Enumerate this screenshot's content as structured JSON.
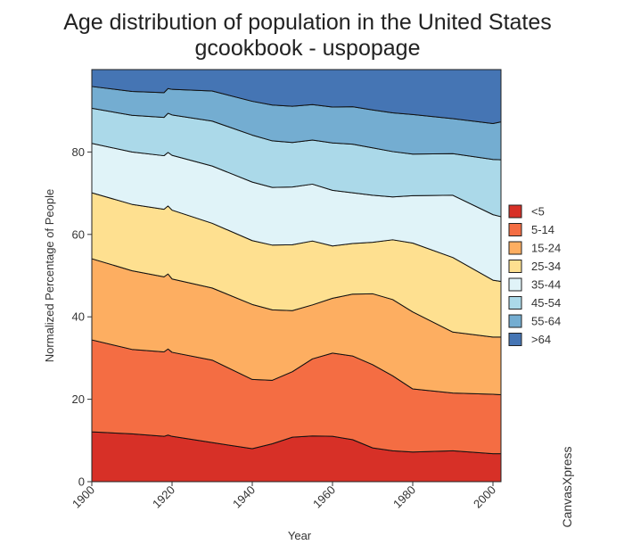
{
  "chart_data": {
    "type": "area",
    "stacked": true,
    "normalized": true,
    "title": "Age distribution of population in the United States",
    "subtitle": "gcookbook - uspopage",
    "xlabel": "Year",
    "ylabel": "Normalized Percentage of People",
    "xlim": [
      1900,
      2002
    ],
    "ylim": [
      0,
      100
    ],
    "x_ticks": [
      "1900",
      "1920",
      "1940",
      "1960",
      "1980",
      "2000"
    ],
    "y_ticks": [
      "0",
      "20",
      "40",
      "60",
      "80"
    ],
    "legend_position": "right",
    "grid": false,
    "credit": "CanvasXpress",
    "x": [
      1900,
      1910,
      1918,
      1919,
      1920,
      1930,
      1940,
      1945,
      1950,
      1955,
      1960,
      1965,
      1970,
      1975,
      1980,
      1990,
      2000,
      2002
    ],
    "series": [
      {
        "name": "<5",
        "color": "#D73027",
        "values": [
          12.1,
          11.6,
          11.0,
          11.3,
          11.0,
          9.5,
          8.0,
          9.2,
          10.8,
          11.1,
          11.0,
          10.2,
          8.2,
          7.5,
          7.2,
          7.5,
          6.8,
          6.8
        ]
      },
      {
        "name": "5-14",
        "color": "#F46D43",
        "values": [
          22.3,
          20.5,
          20.5,
          20.9,
          20.4,
          20.0,
          16.8,
          15.4,
          15.9,
          18.7,
          20.2,
          20.3,
          20.2,
          18.2,
          15.3,
          14.0,
          14.4,
          14.3
        ]
      },
      {
        "name": "15-24",
        "color": "#FDAE61",
        "values": [
          19.7,
          19.1,
          18.2,
          18.2,
          17.8,
          17.5,
          18.2,
          17.1,
          14.8,
          13.1,
          13.3,
          15.0,
          17.2,
          18.5,
          18.7,
          14.8,
          13.9,
          14.0
        ]
      },
      {
        "name": "25-34",
        "color": "#FEE090",
        "values": [
          16.0,
          16.1,
          16.4,
          16.5,
          16.7,
          15.7,
          15.5,
          15.7,
          16.0,
          15.5,
          12.7,
          12.3,
          12.5,
          14.5,
          16.7,
          18.1,
          13.8,
          13.5
        ]
      },
      {
        "name": "35-44",
        "color": "#E0F3F8",
        "values": [
          12.0,
          12.7,
          13.0,
          13.0,
          13.3,
          13.9,
          14.2,
          14.0,
          14.0,
          13.8,
          13.5,
          12.3,
          11.4,
          10.4,
          11.5,
          15.1,
          15.9,
          15.7
        ]
      },
      {
        "name": "45-54",
        "color": "#ABD9E9",
        "values": [
          8.5,
          8.9,
          9.3,
          9.5,
          9.8,
          10.9,
          11.4,
          11.3,
          10.8,
          10.7,
          11.5,
          11.8,
          11.5,
          11.0,
          10.1,
          10.1,
          13.4,
          13.8
        ]
      },
      {
        "name": "55-64",
        "color": "#74ADD1",
        "values": [
          5.3,
          5.8,
          6.0,
          6.0,
          6.2,
          7.3,
          8.2,
          8.7,
          8.8,
          8.6,
          8.7,
          9.1,
          9.2,
          9.4,
          9.6,
          8.5,
          8.7,
          9.2
        ]
      },
      {
        "name": ">64",
        "color": "#4575B4",
        "values": [
          4.1,
          5.3,
          5.6,
          4.6,
          4.8,
          5.2,
          7.7,
          8.6,
          8.9,
          8.5,
          9.1,
          9.0,
          9.8,
          10.5,
          10.9,
          11.9,
          13.1,
          12.7
        ]
      }
    ]
  }
}
